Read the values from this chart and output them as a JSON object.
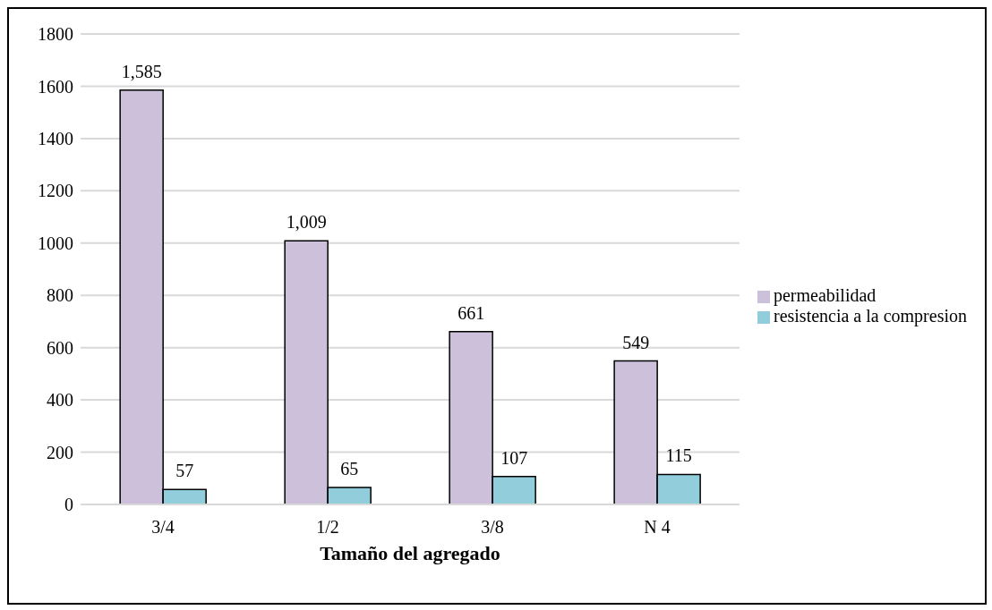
{
  "chart_data": {
    "type": "bar",
    "xlabel": "Tamaño del agregado",
    "categories": [
      "3/4",
      "1/2",
      "3/8",
      "N 4"
    ],
    "series": [
      {
        "name": "permeabilidad",
        "color": "#ccc0da",
        "values": [
          1585,
          1009,
          661,
          549
        ],
        "value_labels": [
          "1,585",
          "1,009",
          "661",
          "549"
        ]
      },
      {
        "name": "resistencia a la compresion",
        "color": "#92cddc",
        "values": [
          57,
          65,
          107,
          115
        ],
        "value_labels": [
          "57",
          "65",
          "107",
          "115"
        ]
      }
    ],
    "ylim": [
      0,
      1800
    ],
    "yticks": [
      0,
      200,
      400,
      600,
      800,
      1000,
      1200,
      1400,
      1600,
      1800
    ],
    "grid": "y",
    "legend": "right"
  }
}
